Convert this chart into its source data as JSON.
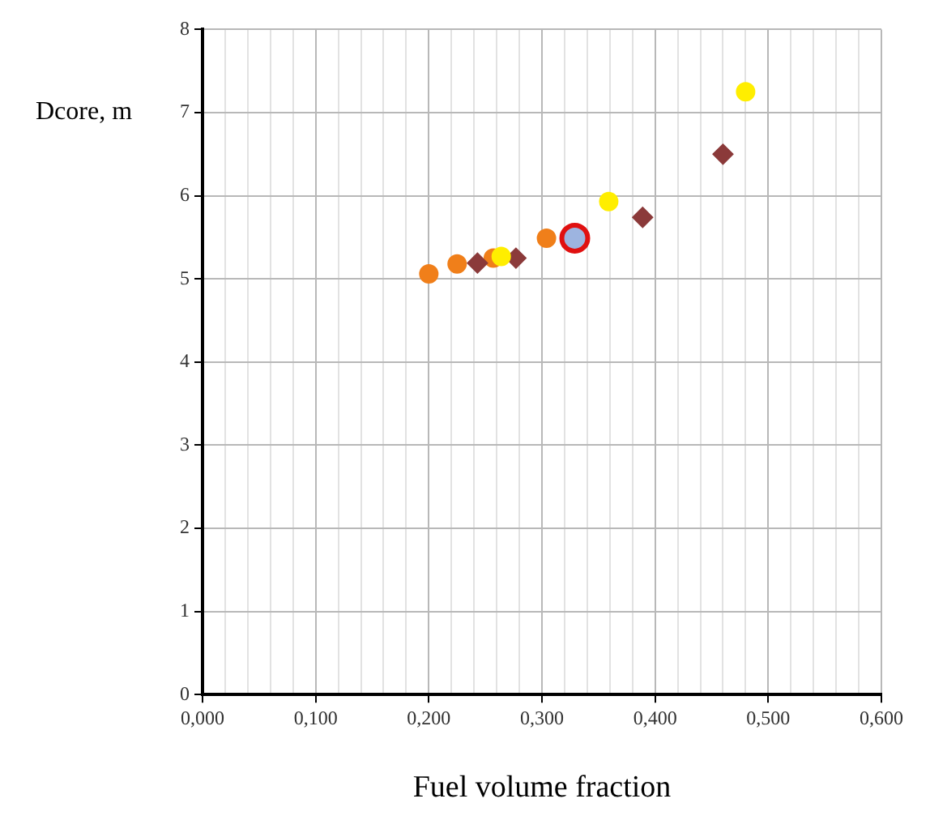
{
  "chart_data": {
    "type": "scatter",
    "xlabel": "Fuel volume fraction",
    "ylabel": "Dcore, m",
    "xlim": [
      0,
      0.6
    ],
    "ylim": [
      0,
      8
    ],
    "xticks": [
      {
        "value": 0,
        "label": "0,000"
      },
      {
        "value": 0.02,
        "label": null
      },
      {
        "value": 0.04,
        "label": null
      },
      {
        "value": 0.06,
        "label": null
      },
      {
        "value": 0.08,
        "label": null
      },
      {
        "value": 0.1,
        "label": "0,100"
      },
      {
        "value": 0.12,
        "label": null
      },
      {
        "value": 0.14,
        "label": null
      },
      {
        "value": 0.16,
        "label": null
      },
      {
        "value": 0.18,
        "label": null
      },
      {
        "value": 0.2,
        "label": "0,200"
      },
      {
        "value": 0.22,
        "label": null
      },
      {
        "value": 0.24,
        "label": null
      },
      {
        "value": 0.26,
        "label": null
      },
      {
        "value": 0.28,
        "label": null
      },
      {
        "value": 0.3,
        "label": "0,300"
      },
      {
        "value": 0.32,
        "label": null
      },
      {
        "value": 0.34,
        "label": null
      },
      {
        "value": 0.36,
        "label": null
      },
      {
        "value": 0.38,
        "label": null
      },
      {
        "value": 0.4,
        "label": "0,400"
      },
      {
        "value": 0.42,
        "label": null
      },
      {
        "value": 0.44,
        "label": null
      },
      {
        "value": 0.46,
        "label": null
      },
      {
        "value": 0.48,
        "label": null
      },
      {
        "value": 0.5,
        "label": "0,500"
      },
      {
        "value": 0.52,
        "label": null
      },
      {
        "value": 0.54,
        "label": null
      },
      {
        "value": 0.56,
        "label": null
      },
      {
        "value": 0.58,
        "label": null
      },
      {
        "value": 0.6,
        "label": "0,600"
      }
    ],
    "yticks": [
      0,
      1,
      2,
      3,
      4,
      5,
      6,
      7,
      8
    ],
    "grid": true,
    "series": [
      {
        "color": "#f07f1a",
        "marker": "circle",
        "x": [
          0.2,
          0.225,
          0.257,
          0.304
        ],
        "values": [
          5.06,
          5.18,
          5.25,
          5.49
        ]
      },
      {
        "color": "#8b3a3a",
        "marker": "diamond",
        "x": [
          0.243,
          0.277,
          0.389,
          0.46
        ],
        "values": [
          5.19,
          5.25,
          5.74,
          6.5
        ]
      },
      {
        "color": "#ffee00",
        "marker": "circle",
        "x": [
          0.264,
          0.359,
          0.48
        ],
        "values": [
          5.27,
          5.93,
          7.25
        ]
      },
      {
        "color": "#e01010",
        "marker": "circle",
        "x": [
          0.329
        ],
        "values": [
          5.49
        ]
      },
      {
        "color": "#9db4e0",
        "marker": "circle",
        "x": [
          0.329
        ],
        "values": [
          5.49
        ]
      }
    ]
  }
}
